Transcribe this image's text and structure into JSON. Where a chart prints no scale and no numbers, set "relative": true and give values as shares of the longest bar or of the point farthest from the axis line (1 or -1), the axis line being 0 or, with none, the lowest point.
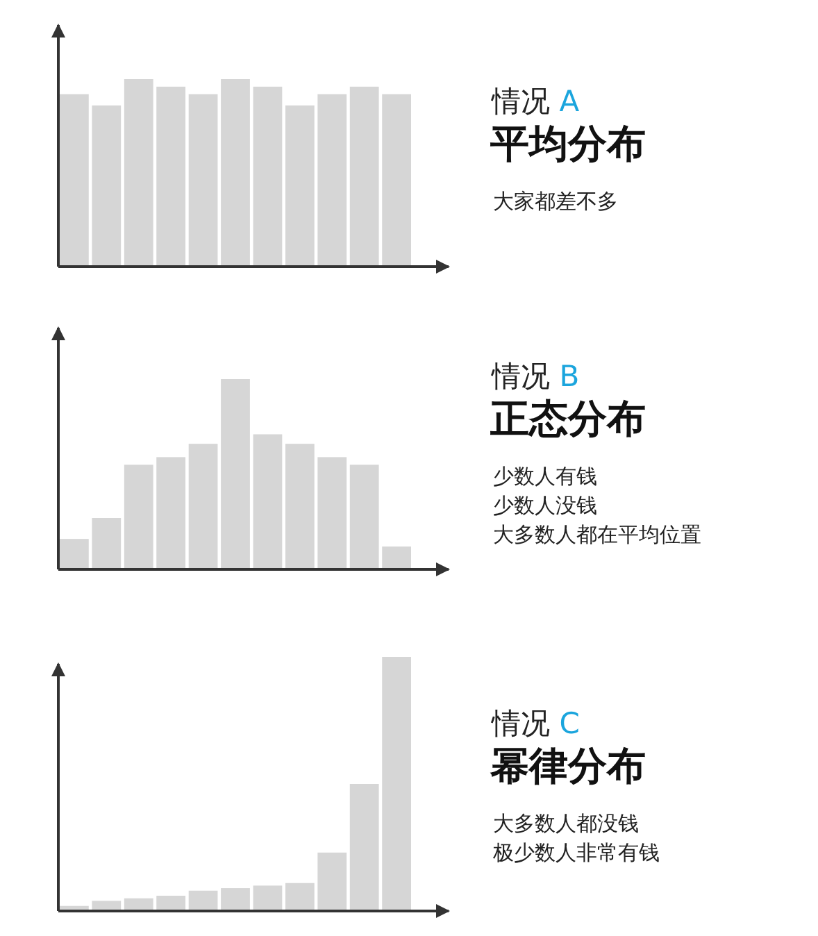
{
  "chart_data": [
    {
      "type": "bar",
      "relative": true,
      "categories": [
        null,
        null,
        null,
        null,
        null,
        null,
        null,
        null,
        null,
        null,
        null
      ],
      "color": "#d6d6d6",
      "values": [
        0.92,
        0.86,
        1,
        0.96,
        0.92,
        1,
        0.96,
        0.86,
        0.92,
        0.96,
        0.92
      ]
    },
    {
      "type": "other",
      "title": "情况 A",
      "subtitle": "平均分布",
      "annotations": [
        "大家都差不多"
      ]
    },
    {
      "type": "bar",
      "relative": true,
      "categories": [
        null,
        null,
        null,
        null,
        null,
        null,
        null,
        null,
        null,
        null,
        null
      ],
      "color": "#d6d6d6",
      "values": [
        0.16,
        0.27,
        0.55,
        0.59,
        0.66,
        1,
        0.71,
        0.66,
        0.59,
        0.55,
        0.12
      ]
    },
    {
      "type": "other",
      "title": "情况 B",
      "subtitle": "正态分布",
      "annotations": [
        "少数人有钱",
        "少数人没钱",
        "大多数人都在平均位置"
      ]
    },
    {
      "type": "bar",
      "relative": true,
      "categories": [
        null,
        null,
        null,
        null,
        null,
        null,
        null,
        null,
        null,
        null,
        null
      ],
      "color": "#d6d6d6",
      "values": [
        0.02,
        0.04,
        0.05,
        0.06,
        0.08,
        0.09,
        0.1,
        0.11,
        0.23,
        0.5,
        1
      ]
    },
    {
      "type": "other",
      "title": "情况 C",
      "subtitle": "幂律分布",
      "annotations": [
        "大多数人都没钱",
        "极少数人非常有钱"
      ]
    }
  ]
}
